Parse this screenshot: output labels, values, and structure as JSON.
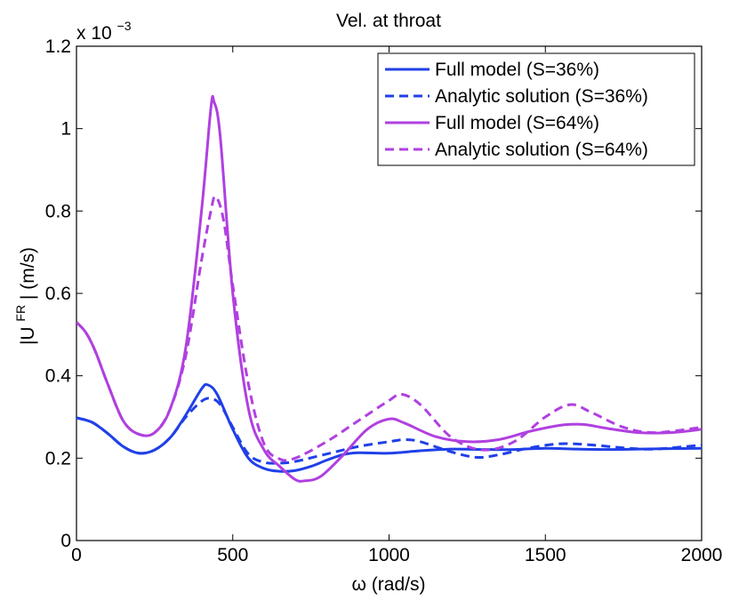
{
  "chart_data": {
    "type": "line",
    "title": "Vel. at throat",
    "xlabel": "ω (rad/s)",
    "ylabel": {
      "prefix": "|U",
      "superscript": "FR",
      "suffix": "| (m/s)"
    },
    "y_scale_note": {
      "base": "x 10",
      "exponent": "−3"
    },
    "xlim": [
      0,
      2000
    ],
    "ylim": [
      0,
      1.2
    ],
    "x_ticks": [
      0,
      500,
      1000,
      1500,
      2000
    ],
    "x_tick_labels": [
      "0",
      "500",
      "1000",
      "1500",
      "2000"
    ],
    "y_ticks": [
      0,
      0.2,
      0.4,
      0.6,
      0.8,
      1.0,
      1.2
    ],
    "y_tick_labels": [
      "0",
      "0.2",
      "0.4",
      "0.6",
      "0.8",
      "1",
      "1.2"
    ],
    "grid": false,
    "legend_position": "top-right",
    "series": [
      {
        "name": "Full model (S=36%)",
        "color": "#2040e8",
        "dash": "solid",
        "points": [
          [
            0,
            0.298
          ],
          [
            50,
            0.287
          ],
          [
            100,
            0.26
          ],
          [
            150,
            0.228
          ],
          [
            200,
            0.212
          ],
          [
            250,
            0.22
          ],
          [
            300,
            0.25
          ],
          [
            350,
            0.305
          ],
          [
            400,
            0.368
          ],
          [
            420,
            0.378
          ],
          [
            450,
            0.355
          ],
          [
            500,
            0.27
          ],
          [
            550,
            0.2
          ],
          [
            600,
            0.175
          ],
          [
            650,
            0.168
          ],
          [
            700,
            0.17
          ],
          [
            750,
            0.18
          ],
          [
            800,
            0.195
          ],
          [
            850,
            0.208
          ],
          [
            900,
            0.213
          ],
          [
            1000,
            0.212
          ],
          [
            1100,
            0.218
          ],
          [
            1200,
            0.222
          ],
          [
            1300,
            0.221
          ],
          [
            1400,
            0.221
          ],
          [
            1500,
            0.224
          ],
          [
            1600,
            0.222
          ],
          [
            1700,
            0.221
          ],
          [
            1800,
            0.222
          ],
          [
            1900,
            0.223
          ],
          [
            2000,
            0.224
          ]
        ]
      },
      {
        "name": "Analytic solution (S=36%)",
        "color": "#2040e8",
        "dash": "dashed",
        "points": [
          [
            0,
            0.298
          ],
          [
            50,
            0.287
          ],
          [
            100,
            0.26
          ],
          [
            150,
            0.228
          ],
          [
            200,
            0.212
          ],
          [
            250,
            0.22
          ],
          [
            300,
            0.25
          ],
          [
            350,
            0.3
          ],
          [
            400,
            0.338
          ],
          [
            430,
            0.345
          ],
          [
            460,
            0.33
          ],
          [
            500,
            0.275
          ],
          [
            550,
            0.21
          ],
          [
            600,
            0.19
          ],
          [
            650,
            0.188
          ],
          [
            700,
            0.192
          ],
          [
            800,
            0.21
          ],
          [
            900,
            0.228
          ],
          [
            1000,
            0.24
          ],
          [
            1050,
            0.245
          ],
          [
            1100,
            0.24
          ],
          [
            1200,
            0.215
          ],
          [
            1280,
            0.202
          ],
          [
            1350,
            0.208
          ],
          [
            1450,
            0.225
          ],
          [
            1550,
            0.235
          ],
          [
            1650,
            0.232
          ],
          [
            1750,
            0.225
          ],
          [
            1850,
            0.222
          ],
          [
            2000,
            0.232
          ]
        ]
      },
      {
        "name": "Full model (S=64%)",
        "color": "#b040e0",
        "dash": "solid",
        "points": [
          [
            0,
            0.53
          ],
          [
            30,
            0.505
          ],
          [
            60,
            0.46
          ],
          [
            100,
            0.38
          ],
          [
            150,
            0.29
          ],
          [
            200,
            0.258
          ],
          [
            250,
            0.262
          ],
          [
            300,
            0.32
          ],
          [
            350,
            0.47
          ],
          [
            400,
            0.8
          ],
          [
            430,
            1.05
          ],
          [
            440,
            1.065
          ],
          [
            460,
            0.98
          ],
          [
            500,
            0.6
          ],
          [
            550,
            0.32
          ],
          [
            600,
            0.22
          ],
          [
            650,
            0.18
          ],
          [
            700,
            0.148
          ],
          [
            730,
            0.145
          ],
          [
            780,
            0.155
          ],
          [
            850,
            0.205
          ],
          [
            930,
            0.27
          ],
          [
            1000,
            0.295
          ],
          [
            1050,
            0.285
          ],
          [
            1150,
            0.252
          ],
          [
            1250,
            0.24
          ],
          [
            1350,
            0.245
          ],
          [
            1450,
            0.265
          ],
          [
            1550,
            0.28
          ],
          [
            1620,
            0.282
          ],
          [
            1700,
            0.272
          ],
          [
            1800,
            0.262
          ],
          [
            1900,
            0.262
          ],
          [
            2000,
            0.27
          ]
        ]
      },
      {
        "name": "Analytic solution (S=64%)",
        "color": "#b040e0",
        "dash": "dashed",
        "points": [
          [
            0,
            0.53
          ],
          [
            30,
            0.505
          ],
          [
            60,
            0.46
          ],
          [
            100,
            0.38
          ],
          [
            150,
            0.29
          ],
          [
            200,
            0.258
          ],
          [
            250,
            0.262
          ],
          [
            300,
            0.32
          ],
          [
            350,
            0.45
          ],
          [
            400,
            0.68
          ],
          [
            430,
            0.8
          ],
          [
            445,
            0.835
          ],
          [
            470,
            0.78
          ],
          [
            500,
            0.62
          ],
          [
            550,
            0.38
          ],
          [
            600,
            0.235
          ],
          [
            650,
            0.198
          ],
          [
            700,
            0.2
          ],
          [
            800,
            0.24
          ],
          [
            900,
            0.29
          ],
          [
            1000,
            0.34
          ],
          [
            1040,
            0.355
          ],
          [
            1100,
            0.33
          ],
          [
            1200,
            0.25
          ],
          [
            1300,
            0.22
          ],
          [
            1400,
            0.24
          ],
          [
            1500,
            0.3
          ],
          [
            1580,
            0.33
          ],
          [
            1650,
            0.31
          ],
          [
            1750,
            0.275
          ],
          [
            1850,
            0.262
          ],
          [
            2000,
            0.275
          ]
        ]
      }
    ]
  }
}
